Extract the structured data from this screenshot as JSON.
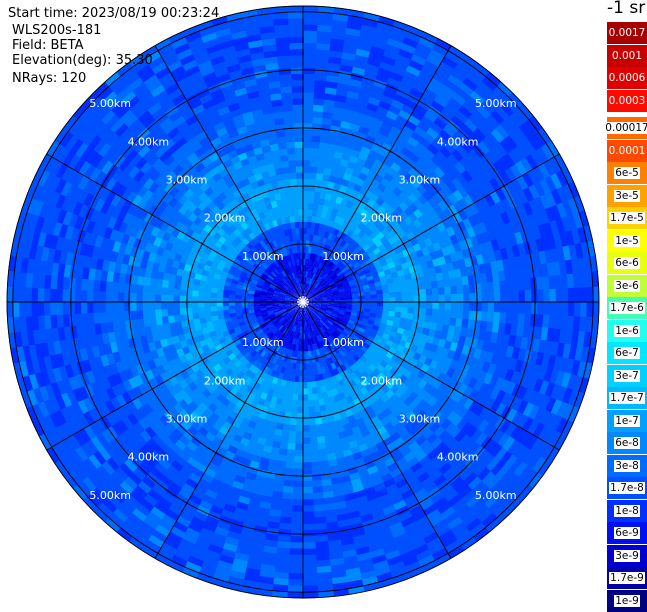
{
  "header": {
    "start_time": "Start time: 2023/08/19 00:23:24",
    "instrument": "WLS200s-181",
    "field": "Field: BETA",
    "elevation_label": "Elevation(deg):",
    "elevation_value": "35.30",
    "nrays": "NRays: 120"
  },
  "chart_data": {
    "type": "heatmap",
    "projection": "polar-ppi",
    "title": "",
    "field": "BETA",
    "elevation_deg": 35.3,
    "n_rays": 120,
    "range_rings_km": [
      1,
      2,
      3,
      4,
      5
    ],
    "max_range_km": 5.1,
    "ring_labels": [
      "1.00km",
      "2.00km",
      "3.00km",
      "4.00km",
      "5.00km"
    ],
    "spokes_deg": [
      0,
      30,
      60,
      90,
      120,
      150,
      180,
      210,
      240,
      270,
      300,
      330
    ],
    "units": "-1 sr",
    "colorbar": {
      "labels": [
        "0.0017",
        "0.001",
        "0.0006",
        "0.0003",
        "0.00017",
        "0.0001",
        "6e-5",
        "3e-5",
        "1.7e-5",
        "1e-5",
        "6e-6",
        "3e-6",
        "1.7e-6",
        "1e-6",
        "6e-7",
        "3e-7",
        "1.7e-7",
        "1e-7",
        "6e-8",
        "3e-8",
        "1.7e-8",
        "1e-8",
        "6e-9",
        "3e-9",
        "1.7e-9",
        "1e-9"
      ],
      "colors": [
        "#a80000",
        "#c80000",
        "#e00000",
        "#ff0a00",
        "#ff6a00",
        "#ff4800",
        "#ff8000",
        "#ffa200",
        "#ffd000",
        "#ffff00",
        "#e8ff10",
        "#c0ff38",
        "#40ffb0",
        "#20fff0",
        "#00e8ff",
        "#00d0ff",
        "#00b8ff",
        "#00a0ff",
        "#0088ff",
        "#006cff",
        "#0050ff",
        "#0030ff",
        "#0010f0",
        "#0000d0",
        "#0000a8",
        "#000080"
      ],
      "text_colors": [
        "#ffffff",
        "#ffffff",
        "#ffffff",
        "#ffffff",
        "#000000",
        "#ffffff",
        "#000000",
        "#000000",
        "#000000",
        "#000000",
        "#000000",
        "#000000",
        "#000000",
        "#000000",
        "#000000",
        "#000000",
        "#000000",
        "#000000",
        "#000000",
        "#ffffff",
        "#ffffff",
        "#ffffff",
        "#ffffff",
        "#ffffff",
        "#ffffff",
        "#ffffff"
      ],
      "gap_after_index": 3
    },
    "value_pattern": [
      {
        "range_km": [
          0.0,
          0.9
        ],
        "level_index": 22
      },
      {
        "range_km": [
          0.9,
          1.4
        ],
        "level_index": 20
      },
      {
        "range_km": [
          1.4,
          2.1
        ],
        "level_index": 17
      },
      {
        "range_km": [
          2.1,
          2.8
        ],
        "level_index": 18
      },
      {
        "range_km": [
          2.8,
          3.4
        ],
        "level_index": 19
      },
      {
        "range_km": [
          3.4,
          4.3
        ],
        "level_index": 20
      },
      {
        "range_km": [
          4.3,
          5.1
        ],
        "level_index": 20
      }
    ],
    "grid": true
  }
}
